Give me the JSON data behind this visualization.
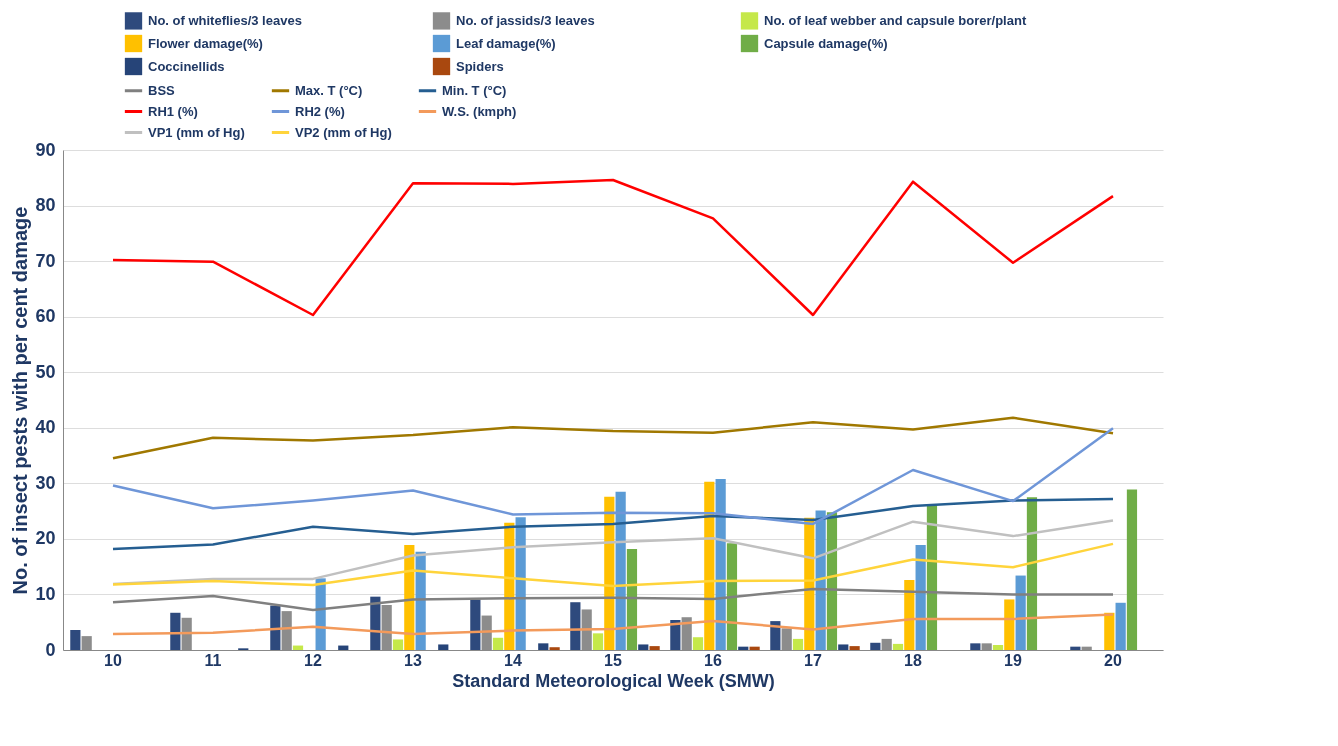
{
  "chart_data": {
    "type": "bar",
    "xlabel": "Standard Meteorological Week (SMW)",
    "ylabel": "No. of insect pests with per cent damage",
    "categories": [
      "10",
      "11",
      "12",
      "13",
      "14",
      "15",
      "16",
      "17",
      "18",
      "19",
      "20"
    ],
    "ylim": [
      0,
      90
    ],
    "yticks": [
      0,
      10,
      20,
      30,
      40,
      50,
      60,
      70,
      80,
      90
    ],
    "grid": "y",
    "legend": "top",
    "series": [
      {
        "name": "No. of whiteflies/3 leaves",
        "color": "#2e4a7d",
        "values": [
          3.6,
          6.7,
          8.0,
          9.6,
          9.1,
          8.6,
          5.4,
          5.2,
          1.3,
          1.2,
          0.6
        ]
      },
      {
        "name": "No. of jassids/3 leaves",
        "color": "#8c8c8c",
        "values": [
          2.5,
          5.8,
          7.0,
          8.1,
          6.2,
          7.3,
          5.9,
          3.9,
          2.0,
          1.2,
          0.6
        ]
      },
      {
        "name": "No. of leaf webber and capsule borer/plant",
        "color": "#c5e84a",
        "values": [
          0,
          0,
          0.8,
          1.9,
          2.2,
          3.0,
          2.3,
          2.0,
          1.1,
          0.9,
          0
        ]
      },
      {
        "name": "Flower damage(%)",
        "color": "#ffc000",
        "values": [
          0,
          0,
          0,
          18.9,
          22.9,
          27.6,
          30.3,
          23.8,
          12.6,
          9.1,
          6.7
        ]
      },
      {
        "name": "Leaf damage(%)",
        "color": "#5b9bd5",
        "values": [
          0,
          0,
          12.9,
          17.7,
          23.9,
          28.5,
          30.8,
          25.1,
          18.9,
          13.4,
          8.5
        ]
      },
      {
        "name": "Capsule damage(%)",
        "color": "#70ad47",
        "values": [
          0,
          0,
          0,
          0,
          0,
          18.2,
          19.2,
          24.8,
          26.1,
          27.5,
          28.9
        ]
      },
      {
        "name": "Coccinellids",
        "color": "#264478",
        "values": [
          0,
          0.3,
          0.8,
          1.0,
          1.2,
          1.0,
          0.6,
          1.0,
          0,
          0,
          0
        ]
      },
      {
        "name": "Spiders",
        "color": "#a9480f",
        "values": [
          0,
          0,
          0,
          0,
          0.5,
          0.7,
          0.6,
          0.7,
          0,
          0,
          0
        ]
      },
      {
        "name": "BSS",
        "type": "line",
        "color": "#808080",
        "values": [
          8.6,
          9.7,
          7.2,
          9.1,
          9.3,
          9.4,
          9.2,
          11.0,
          10.5,
          10.0,
          10.0
        ]
      },
      {
        "name": "Max. T (°C)",
        "type": "line",
        "color": "#a07800",
        "values": [
          34.5,
          38.2,
          37.7,
          38.7,
          40.1,
          39.4,
          39.1,
          41.0,
          39.7,
          41.8,
          39.0
        ]
      },
      {
        "name": "Min. T (°C)",
        "type": "line",
        "color": "#255e91",
        "values": [
          18.2,
          19.0,
          22.2,
          20.9,
          22.2,
          22.7,
          24.1,
          23.4,
          25.9,
          26.9,
          27.2
        ]
      },
      {
        "name": "RH1 (%)",
        "type": "line",
        "color": "#ff0000",
        "values": [
          70.2,
          69.9,
          60.3,
          84.0,
          83.9,
          84.6,
          77.7,
          60.3,
          84.3,
          69.7,
          81.7
        ]
      },
      {
        "name": "RH2 (%)",
        "type": "line",
        "color": "#6f96d8",
        "values": [
          29.6,
          25.5,
          26.9,
          28.7,
          24.4,
          24.7,
          24.6,
          22.7,
          32.4,
          26.8,
          39.9
        ]
      },
      {
        "name": "W.S. (kmph)",
        "type": "line",
        "color": "#f39a5b",
        "values": [
          2.9,
          3.1,
          4.2,
          2.9,
          3.5,
          3.8,
          5.2,
          3.7,
          5.6,
          5.6,
          6.4
        ]
      },
      {
        "name": "VP1 (mm of Hg)",
        "type": "line",
        "color": "#c0c0c0",
        "values": [
          11.9,
          12.8,
          12.8,
          17.0,
          18.5,
          19.4,
          20.1,
          16.5,
          23.1,
          20.5,
          23.3
        ]
      },
      {
        "name": "VP2 (mm of Hg)",
        "type": "line",
        "color": "#ffd43b",
        "values": [
          11.8,
          12.4,
          11.7,
          14.3,
          12.9,
          11.5,
          12.4,
          12.5,
          16.3,
          14.9,
          19.1
        ]
      }
    ]
  }
}
